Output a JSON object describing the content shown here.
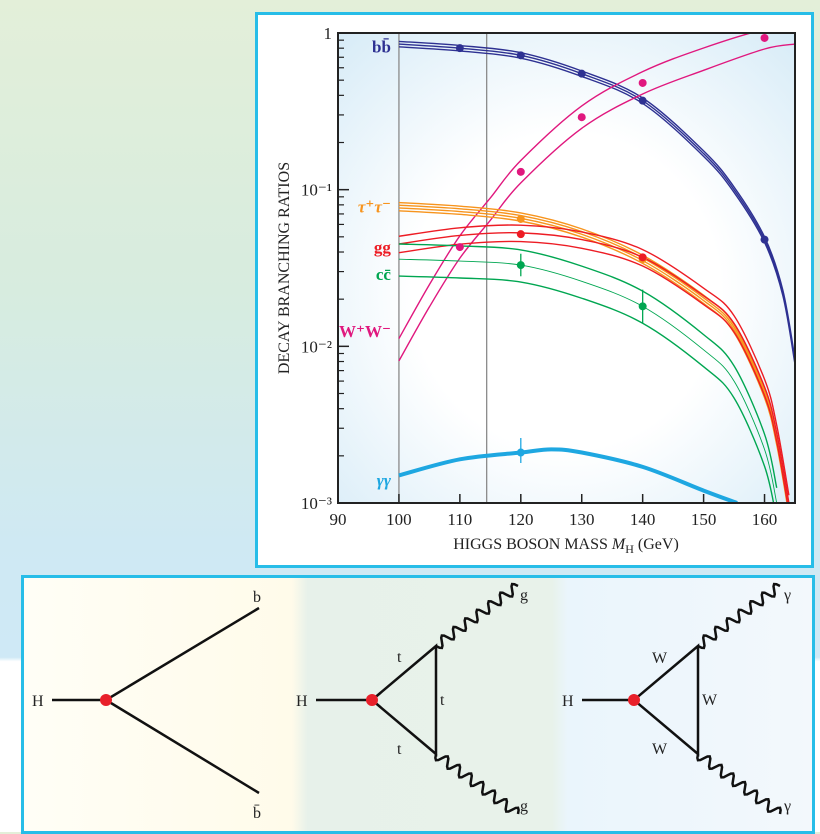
{
  "chart_data": {
    "type": "line",
    "title": "",
    "xlabel": "HIGGS BOSON MASS M_H (GeV)",
    "xlabel_main": "HIGGS BOSON MASS ",
    "xlabel_var": "M",
    "xlabel_sub": "H",
    "xlabel_unit": " (GeV)",
    "ylabel": "DECAY BRANCHING RATIOS",
    "xlim": [
      90,
      165
    ],
    "ylim": [
      0.001,
      1
    ],
    "yscale": "log",
    "x_ticks": [
      "90",
      "100",
      "110",
      "120",
      "130",
      "140",
      "150",
      "160"
    ],
    "x_tick_values": [
      90,
      100,
      110,
      120,
      130,
      140,
      150,
      160
    ],
    "y_ticks": [
      "1",
      "10⁻¹",
      "10⁻²",
      "10⁻³"
    ],
    "y_tick_values": [
      1,
      0.1,
      0.01,
      0.001
    ],
    "vertical_lines": [
      100,
      114.4
    ],
    "series": [
      {
        "name": "bb̄",
        "color": "#2e3192",
        "band": [
          0.96,
          1.0,
          1.04
        ],
        "points": [
          [
            100,
            0.85
          ],
          [
            110,
            0.8
          ],
          [
            120,
            0.72
          ],
          [
            130,
            0.55
          ],
          [
            140,
            0.37
          ],
          [
            150,
            0.17
          ],
          [
            155,
            0.1
          ],
          [
            160,
            0.048
          ],
          [
            163,
            0.022
          ],
          [
            165,
            0.008
          ]
        ],
        "markers": [
          [
            110,
            0.8
          ],
          [
            120,
            0.72
          ],
          [
            130,
            0.55
          ],
          [
            140,
            0.37
          ],
          [
            160,
            0.048
          ]
        ]
      },
      {
        "name": "W⁺W⁻",
        "color": "#e0187e",
        "band": [
          0.85,
          1.18
        ],
        "points": [
          [
            100,
            0.0095
          ],
          [
            105,
            0.021
          ],
          [
            110,
            0.043
          ],
          [
            115,
            0.075
          ],
          [
            120,
            0.13
          ],
          [
            130,
            0.29
          ],
          [
            140,
            0.48
          ],
          [
            150,
            0.68
          ],
          [
            160,
            0.93
          ],
          [
            165,
            1.0
          ]
        ],
        "markers": [
          [
            110,
            0.043
          ],
          [
            120,
            0.13
          ],
          [
            130,
            0.29
          ],
          [
            140,
            0.48
          ],
          [
            160,
            0.93
          ]
        ]
      },
      {
        "name": "τ⁺τ⁻",
        "color": "#f7941d",
        "band": [
          0.94,
          0.98,
          1.02,
          1.06
        ],
        "points": [
          [
            100,
            0.078
          ],
          [
            110,
            0.074
          ],
          [
            120,
            0.067
          ],
          [
            130,
            0.053
          ],
          [
            140,
            0.036
          ],
          [
            150,
            0.02
          ],
          [
            155,
            0.013
          ],
          [
            160,
            0.005
          ],
          [
            162,
            0.0025
          ],
          [
            163.8,
            0.001
          ]
        ],
        "markers": [
          [
            120,
            0.065
          ],
          [
            140,
            0.036
          ]
        ]
      },
      {
        "name": "gg",
        "color": "#ed1c24",
        "band": [
          0.88,
          1.0,
          1.12
        ],
        "points": [
          [
            100,
            0.045
          ],
          [
            110,
            0.051
          ],
          [
            120,
            0.053
          ],
          [
            130,
            0.048
          ],
          [
            140,
            0.037
          ],
          [
            150,
            0.021
          ],
          [
            155,
            0.014
          ],
          [
            160,
            0.0055
          ],
          [
            162,
            0.0028
          ],
          [
            164,
            0.001
          ]
        ],
        "markers": [
          [
            120,
            0.052
          ],
          [
            140,
            0.037
          ]
        ]
      },
      {
        "name": "cc̄",
        "color": "#00a651",
        "band": [
          0.78,
          1.0,
          1.25
        ],
        "points": [
          [
            100,
            0.036
          ],
          [
            110,
            0.035
          ],
          [
            120,
            0.033
          ],
          [
            130,
            0.026
          ],
          [
            140,
            0.018
          ],
          [
            150,
            0.0095
          ],
          [
            155,
            0.006
          ],
          [
            160,
            0.0022
          ],
          [
            162,
            0.001
          ]
        ],
        "markers": [
          [
            120,
            0.033,
            0.028,
            0.039
          ],
          [
            140,
            0.018,
            0.014,
            0.023
          ]
        ]
      },
      {
        "name": "γγ",
        "color": "#1ea7e1",
        "band": [
          1.0
        ],
        "width": 4,
        "points": [
          [
            100,
            0.0015
          ],
          [
            110,
            0.0019
          ],
          [
            120,
            0.0021
          ],
          [
            125,
            0.0022
          ],
          [
            130,
            0.0021
          ],
          [
            140,
            0.0017
          ],
          [
            150,
            0.0012
          ],
          [
            155.5,
            0.001
          ]
        ],
        "markers": [
          [
            120,
            0.0021,
            0.0018,
            0.0026
          ]
        ]
      }
    ]
  },
  "diagrams": {
    "bb": {
      "H": "H",
      "top": "b",
      "bottom": "b̄"
    },
    "gg": {
      "H": "H",
      "loop_top": "t",
      "loop_right": "t",
      "loop_bottom": "t",
      "top": "g",
      "bottom": "g"
    },
    "gamma": {
      "H": "H",
      "loop_top": "W",
      "loop_right": "W",
      "loop_bottom": "W",
      "top": "γ",
      "bottom": "γ"
    }
  },
  "colors": {
    "frame": "#27bde8",
    "vertex": "#e8202a"
  }
}
